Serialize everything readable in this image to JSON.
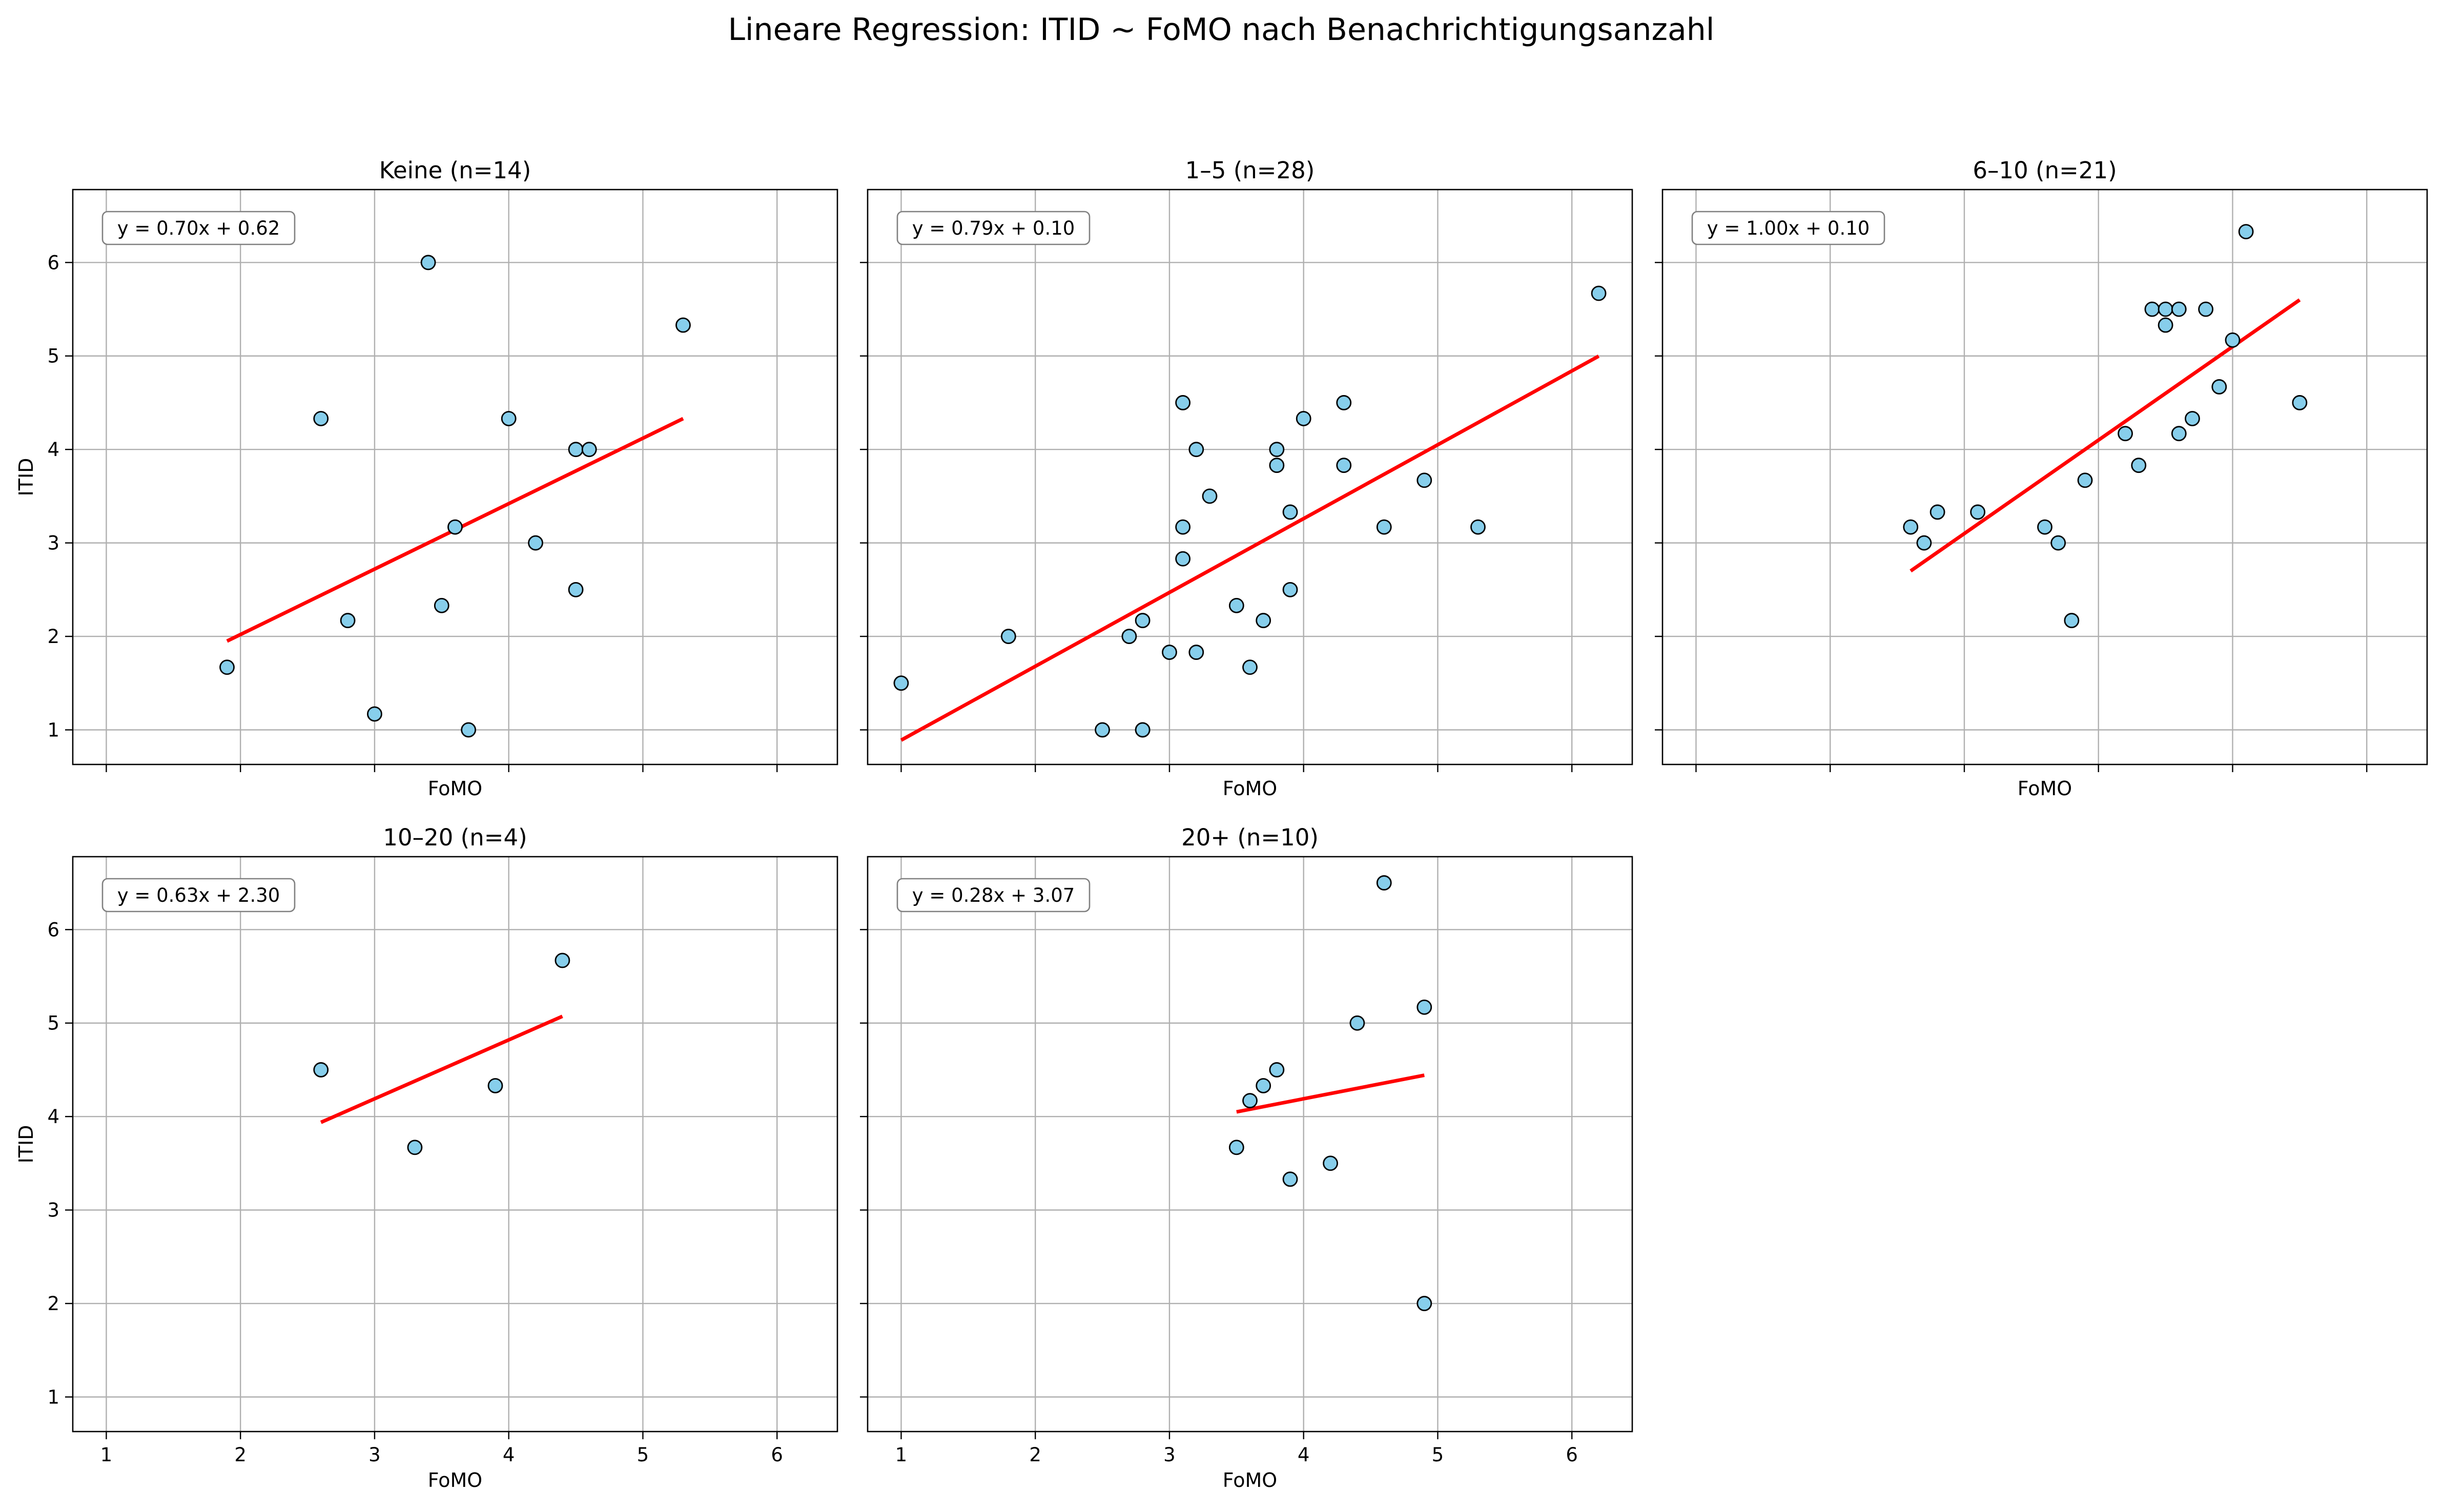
{
  "figure_title": "Lineare Regression: ITID ~ FoMO nach Benachrichtigungsanzahl",
  "chart_data": [
    {
      "type": "scatter",
      "title": "Keine (n=14)",
      "xlabel": "FoMO",
      "ylabel": "ITID",
      "xlim": [
        0.75,
        6.45
      ],
      "ylim": [
        0.63,
        6.78
      ],
      "xticks": [
        1,
        2,
        3,
        4,
        5,
        6
      ],
      "yticks": [
        1,
        2,
        3,
        4,
        5,
        6
      ],
      "show_xticklabels": false,
      "show_yticklabels": true,
      "grid": true,
      "equation": "y = 0.70x + 0.62",
      "fit": {
        "slope": 0.7,
        "intercept": 0.62,
        "x_range": [
          1.9,
          5.3
        ]
      },
      "points": [
        {
          "x": 1.9,
          "y": 1.67
        },
        {
          "x": 2.6,
          "y": 4.33
        },
        {
          "x": 2.8,
          "y": 2.17
        },
        {
          "x": 3.0,
          "y": 1.17
        },
        {
          "x": 3.4,
          "y": 6.0
        },
        {
          "x": 3.5,
          "y": 2.33
        },
        {
          "x": 3.6,
          "y": 3.17
        },
        {
          "x": 3.7,
          "y": 1.0
        },
        {
          "x": 4.0,
          "y": 4.33
        },
        {
          "x": 4.2,
          "y": 3.0
        },
        {
          "x": 4.5,
          "y": 4.0
        },
        {
          "x": 4.6,
          "y": 4.0
        },
        {
          "x": 4.5,
          "y": 2.5
        },
        {
          "x": 5.3,
          "y": 5.33
        }
      ]
    },
    {
      "type": "scatter",
      "title": "1–5 (n=28)",
      "xlabel": "FoMO",
      "ylabel": "",
      "xlim": [
        0.75,
        6.45
      ],
      "ylim": [
        0.63,
        6.78
      ],
      "xticks": [
        1,
        2,
        3,
        4,
        5,
        6
      ],
      "yticks": [
        1,
        2,
        3,
        4,
        5,
        6
      ],
      "show_xticklabels": false,
      "show_yticklabels": false,
      "grid": true,
      "equation": "y = 0.79x + 0.10",
      "fit": {
        "slope": 0.79,
        "intercept": 0.1,
        "x_range": [
          1.0,
          6.2
        ]
      },
      "points": [
        {
          "x": 1.0,
          "y": 1.5
        },
        {
          "x": 1.8,
          "y": 2.0
        },
        {
          "x": 2.5,
          "y": 1.0
        },
        {
          "x": 2.7,
          "y": 2.0
        },
        {
          "x": 2.8,
          "y": 1.0
        },
        {
          "x": 2.8,
          "y": 1.0
        },
        {
          "x": 2.8,
          "y": 2.17
        },
        {
          "x": 3.0,
          "y": 1.83
        },
        {
          "x": 3.1,
          "y": 4.5
        },
        {
          "x": 3.1,
          "y": 3.17
        },
        {
          "x": 3.1,
          "y": 2.83
        },
        {
          "x": 3.2,
          "y": 4.0
        },
        {
          "x": 3.2,
          "y": 1.83
        },
        {
          "x": 3.3,
          "y": 3.5
        },
        {
          "x": 3.5,
          "y": 2.33
        },
        {
          "x": 3.6,
          "y": 1.67
        },
        {
          "x": 3.7,
          "y": 2.17
        },
        {
          "x": 3.8,
          "y": 4.0
        },
        {
          "x": 3.8,
          "y": 3.83
        },
        {
          "x": 3.9,
          "y": 3.33
        },
        {
          "x": 3.9,
          "y": 2.5
        },
        {
          "x": 4.0,
          "y": 4.33
        },
        {
          "x": 4.3,
          "y": 4.5
        },
        {
          "x": 4.3,
          "y": 3.83
        },
        {
          "x": 4.6,
          "y": 3.17
        },
        {
          "x": 4.9,
          "y": 3.67
        },
        {
          "x": 5.3,
          "y": 3.17
        },
        {
          "x": 6.2,
          "y": 5.67
        }
      ]
    },
    {
      "type": "scatter",
      "title": "6–10 (n=21)",
      "xlabel": "FoMO",
      "ylabel": "",
      "xlim": [
        0.75,
        6.45
      ],
      "ylim": [
        0.63,
        6.78
      ],
      "xticks": [
        1,
        2,
        3,
        4,
        5,
        6
      ],
      "yticks": [
        1,
        2,
        3,
        4,
        5,
        6
      ],
      "show_xticklabels": false,
      "show_yticklabels": false,
      "grid": true,
      "equation": "y = 1.00x + 0.10",
      "fit": {
        "slope": 1.0,
        "intercept": 0.1,
        "x_range": [
          2.6,
          5.5
        ]
      },
      "points": [
        {
          "x": 2.6,
          "y": 3.17
        },
        {
          "x": 2.7,
          "y": 3.0
        },
        {
          "x": 2.8,
          "y": 3.33
        },
        {
          "x": 3.1,
          "y": 3.33
        },
        {
          "x": 3.6,
          "y": 3.17
        },
        {
          "x": 3.7,
          "y": 3.0
        },
        {
          "x": 3.8,
          "y": 2.17
        },
        {
          "x": 3.9,
          "y": 3.67
        },
        {
          "x": 4.2,
          "y": 4.17
        },
        {
          "x": 4.3,
          "y": 3.83
        },
        {
          "x": 4.4,
          "y": 5.5
        },
        {
          "x": 4.5,
          "y": 5.5
        },
        {
          "x": 4.5,
          "y": 5.33
        },
        {
          "x": 4.6,
          "y": 5.5
        },
        {
          "x": 4.6,
          "y": 4.17
        },
        {
          "x": 4.7,
          "y": 4.33
        },
        {
          "x": 4.8,
          "y": 5.5
        },
        {
          "x": 4.9,
          "y": 4.67
        },
        {
          "x": 5.0,
          "y": 5.17
        },
        {
          "x": 5.1,
          "y": 6.33
        },
        {
          "x": 5.5,
          "y": 4.5
        }
      ]
    },
    {
      "type": "scatter",
      "title": "10–20 (n=4)",
      "xlabel": "FoMO",
      "ylabel": "ITID",
      "xlim": [
        0.75,
        6.45
      ],
      "ylim": [
        0.63,
        6.78
      ],
      "xticks": [
        1,
        2,
        3,
        4,
        5,
        6
      ],
      "yticks": [
        1,
        2,
        3,
        4,
        5,
        6
      ],
      "show_xticklabels": true,
      "show_yticklabels": true,
      "grid": true,
      "equation": "y = 0.63x + 2.30",
      "fit": {
        "slope": 0.63,
        "intercept": 2.3,
        "x_range": [
          2.6,
          4.4
        ]
      },
      "points": [
        {
          "x": 2.6,
          "y": 4.5
        },
        {
          "x": 3.3,
          "y": 3.67
        },
        {
          "x": 3.9,
          "y": 4.33
        },
        {
          "x": 4.4,
          "y": 5.67
        }
      ]
    },
    {
      "type": "scatter",
      "title": "20+ (n=10)",
      "xlabel": "FoMO",
      "ylabel": "",
      "xlim": [
        0.75,
        6.45
      ],
      "ylim": [
        0.63,
        6.78
      ],
      "xticks": [
        1,
        2,
        3,
        4,
        5,
        6
      ],
      "yticks": [
        1,
        2,
        3,
        4,
        5,
        6
      ],
      "show_xticklabels": true,
      "show_yticklabels": false,
      "grid": true,
      "equation": "y = 0.28x + 3.07",
      "fit": {
        "slope": 0.28,
        "intercept": 3.07,
        "x_range": [
          3.5,
          4.9
        ]
      },
      "points": [
        {
          "x": 3.5,
          "y": 3.67
        },
        {
          "x": 3.6,
          "y": 4.17
        },
        {
          "x": 3.7,
          "y": 4.33
        },
        {
          "x": 3.8,
          "y": 4.5
        },
        {
          "x": 3.9,
          "y": 3.33
        },
        {
          "x": 4.2,
          "y": 3.5
        },
        {
          "x": 4.4,
          "y": 5.0
        },
        {
          "x": 4.6,
          "y": 6.5
        },
        {
          "x": 4.9,
          "y": 5.17
        },
        {
          "x": 4.9,
          "y": 2.0
        }
      ]
    }
  ],
  "colors": {
    "point_fill": "#87ceeb",
    "point_edge": "#000000",
    "fit_line": "#ff0000",
    "grid": "#b0b0b0",
    "frame": "#000000"
  }
}
